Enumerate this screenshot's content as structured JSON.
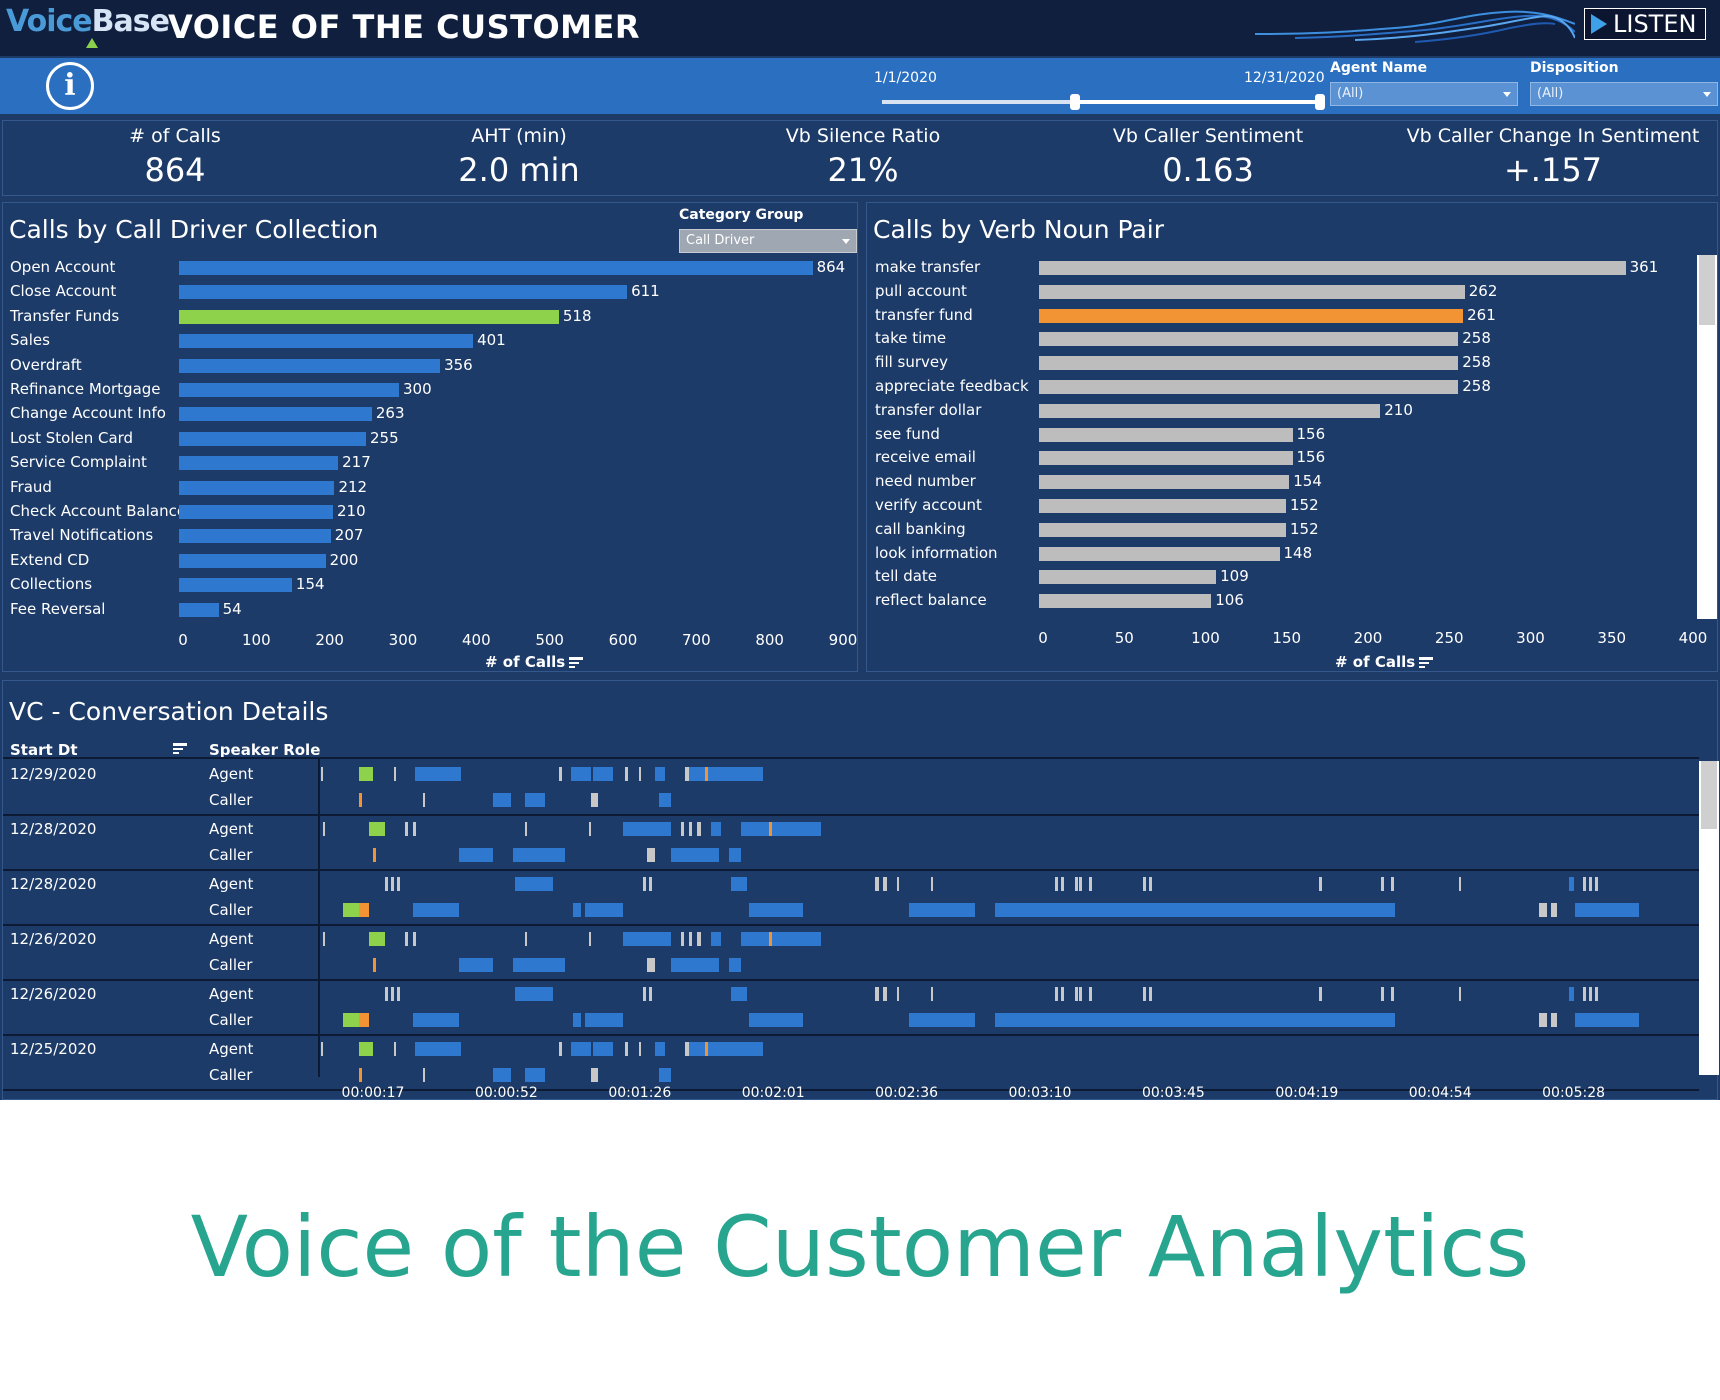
{
  "header": {
    "logo_part1": "Voice",
    "logo_part2": "Base",
    "title": "VOICE OF THE CUSTOMER",
    "listen_label": "LISTEN"
  },
  "filters": {
    "date_start": "1/1/2020",
    "date_end": "12/31/2020",
    "slider_range": [
      0.44,
      1.0
    ],
    "agent_label": "Agent Name",
    "agent_value": "(All)",
    "disposition_label": "Disposition",
    "disposition_value": "(All)"
  },
  "kpis": [
    {
      "label": "# of Calls",
      "value": "864"
    },
    {
      "label": "AHT (min)",
      "value": "2.0 min"
    },
    {
      "label": "Vb Silence Ratio",
      "value": "21%"
    },
    {
      "label": "Vb Caller Sentiment",
      "value": "0.163"
    },
    {
      "label": "Vb Caller Change In Sentiment",
      "value": "+.157"
    }
  ],
  "colors": {
    "bar_blue": "#2f78cf",
    "highlight_green": "#8ed14b",
    "bar_gray": "#bdbdbd",
    "highlight_orange": "#f29433",
    "segment_blue": "#2f78cf",
    "segment_gray": "#c8c8c8",
    "segment_orange": "#f29433"
  },
  "call_driver": {
    "title": "Calls by Call Driver Collection",
    "category_group_label": "Category Group",
    "category_group_value": "Call Driver",
    "axis_title": "# of Calls",
    "ticks": [
      "0",
      "100",
      "200",
      "300",
      "400",
      "500",
      "600",
      "700",
      "800",
      "900"
    ]
  },
  "verb_noun": {
    "title": "Calls by Verb Noun Pair",
    "axis_title": "# of Calls",
    "ticks": [
      "0",
      "50",
      "100",
      "150",
      "200",
      "250",
      "300",
      "350",
      "400"
    ]
  },
  "chart_data": [
    {
      "type": "bar",
      "orientation": "horizontal",
      "title": "Calls by Call Driver Collection",
      "xlabel": "# of Calls",
      "xlim": [
        0,
        900
      ],
      "categories": [
        "Open Account",
        "Close Account",
        "Transfer Funds",
        "Sales",
        "Overdraft",
        "Refinance Mortgage",
        "Change Account Info",
        "Lost Stolen Card",
        "Service Complaint",
        "Fraud",
        "Check Account Balance",
        "Travel Notifications",
        "Extend CD",
        "Collections",
        "Fee Reversal"
      ],
      "values": [
        864,
        611,
        518,
        401,
        356,
        300,
        263,
        255,
        217,
        212,
        210,
        207,
        200,
        154,
        54
      ],
      "highlighted": "Transfer Funds"
    },
    {
      "type": "bar",
      "orientation": "horizontal",
      "title": "Calls by Verb Noun Pair",
      "xlabel": "# of Calls",
      "xlim": [
        0,
        400
      ],
      "categories": [
        "make transfer",
        "pull account",
        "transfer fund",
        "take time",
        "fill survey",
        "appreciate feedback",
        "transfer dollar",
        "see fund",
        "receive email",
        "need number",
        "verify account",
        "call banking",
        "look information",
        "tell date",
        "reflect balance"
      ],
      "values": [
        361,
        262,
        261,
        258,
        258,
        258,
        210,
        156,
        156,
        154,
        152,
        152,
        148,
        109,
        106
      ],
      "highlighted": "transfer fund"
    }
  ],
  "conversation": {
    "title": "VC - Conversation Details",
    "col_date": "Start Dt",
    "col_role": "Speaker Role",
    "time_ticks": [
      "00:00:17",
      "00:00:52",
      "00:01:26",
      "00:02:01",
      "00:02:36",
      "00:03:10",
      "00:03:45",
      "00:04:19",
      "00:04:54",
      "00:05:28"
    ],
    "rows": [
      {
        "date": "12/29/2020",
        "roles": [
          "Agent",
          "Caller"
        ]
      },
      {
        "date": "12/28/2020",
        "roles": [
          "Agent",
          "Caller"
        ]
      },
      {
        "date": "12/28/2020",
        "roles": [
          "Agent",
          "Caller"
        ]
      },
      {
        "date": "12/26/2020",
        "roles": [
          "Agent",
          "Caller"
        ]
      },
      {
        "date": "12/26/2020",
        "roles": [
          "Agent",
          "Caller"
        ]
      },
      {
        "date": "12/25/2020",
        "roles": [
          "Agent",
          "Caller"
        ]
      }
    ]
  },
  "caption": "Voice of the Customer Analytics"
}
